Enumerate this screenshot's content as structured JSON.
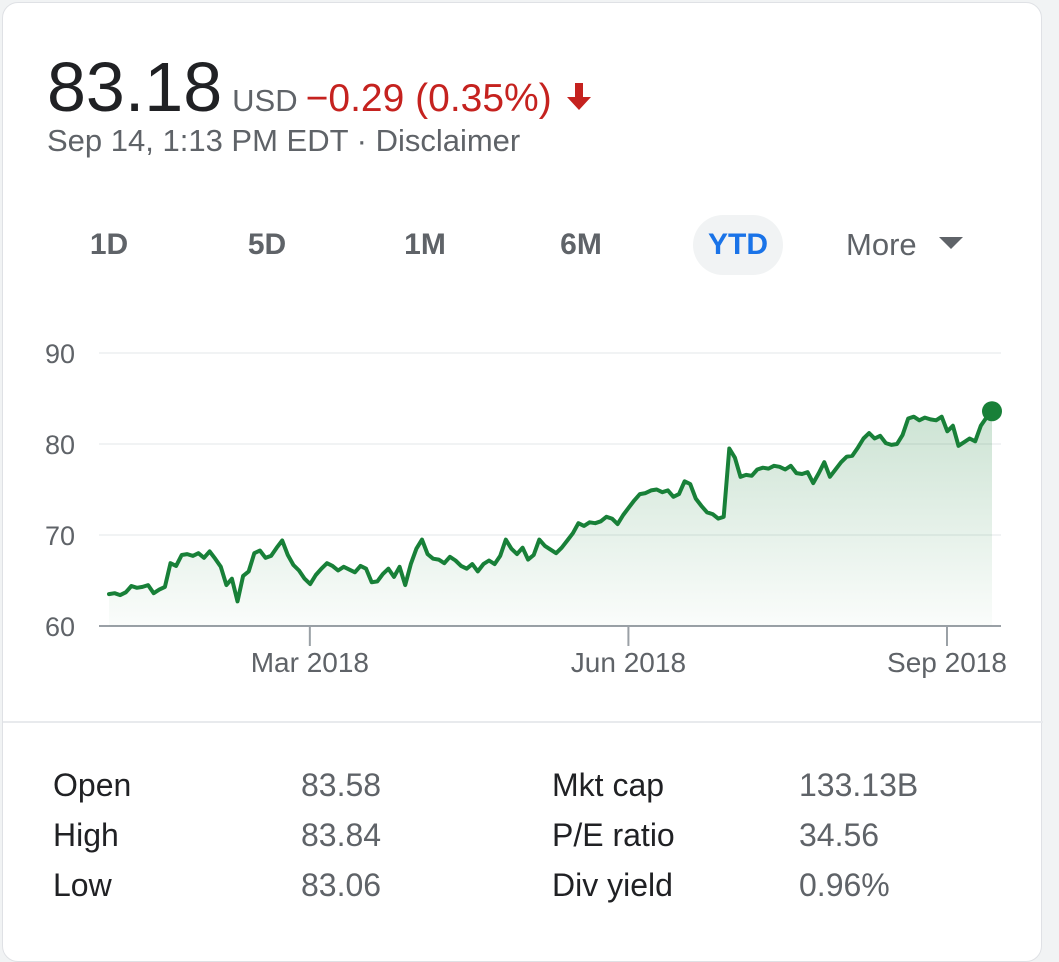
{
  "quote": {
    "price": "83.18",
    "currency": "USD",
    "change": "−0.29 (0.35%)",
    "timestamp": "Sep 14, 1:13 PM EDT",
    "separator": "·",
    "disclaimer": "Disclaimer",
    "change_color": "#c5221f",
    "direction_icon": "arrow-down-icon"
  },
  "ranges": {
    "items": [
      {
        "label": "1D",
        "active": false
      },
      {
        "label": "5D",
        "active": false
      },
      {
        "label": "1M",
        "active": false
      },
      {
        "label": "6M",
        "active": false
      },
      {
        "label": "YTD",
        "active": true
      }
    ],
    "more_label": "More",
    "active_color": "#1a73e8"
  },
  "chart_data": {
    "type": "area",
    "line_color": "#188038",
    "ylim": [
      60,
      90
    ],
    "yticks": [
      60,
      70,
      80,
      90
    ],
    "grid": true,
    "xtick_labels": [
      {
        "label": "Mar 2018",
        "x": "2018-03-01"
      },
      {
        "label": "Jun 2018",
        "x": "2018-06-01"
      },
      {
        "label": "Sep 2018",
        "x": "2018-09-01"
      }
    ],
    "x_start": "2018-01-02",
    "x_end": "2018-09-14",
    "series": [
      {
        "values": [
          63.5,
          63.6,
          63.4,
          63.7,
          64.4,
          64.2,
          64.3,
          64.5,
          63.6,
          64.0,
          64.3,
          66.9,
          66.6,
          67.8,
          67.9,
          67.7,
          68.0,
          67.5,
          68.2,
          67.4,
          66.5,
          64.5,
          65.2,
          62.7,
          65.5,
          66.0,
          68.0,
          68.3,
          67.5,
          67.7,
          68.6,
          69.4,
          67.8,
          66.7,
          66.1,
          65.2,
          64.6,
          65.6,
          66.3,
          66.9,
          66.6,
          66.1,
          66.5,
          66.2,
          65.9,
          66.6,
          66.3,
          64.8,
          64.9,
          65.7,
          66.3,
          65.4,
          66.5,
          64.5,
          66.8,
          68.5,
          69.5,
          67.9,
          67.4,
          67.3,
          66.9,
          67.6,
          67.2,
          66.6,
          66.3,
          66.8,
          66.0,
          66.8,
          67.2,
          66.8,
          67.7,
          69.5,
          68.5,
          67.9,
          68.6,
          67.3,
          67.8,
          69.5,
          68.8,
          68.4,
          68.0,
          68.6,
          69.4,
          70.2,
          71.3,
          71.0,
          71.4,
          71.3,
          71.5,
          72.0,
          71.8,
          71.2,
          72.2,
          73.0,
          73.8,
          74.5,
          74.6,
          74.9,
          75.0,
          74.7,
          74.9,
          74.2,
          74.5,
          75.9,
          75.6,
          74.0,
          73.2,
          72.5,
          72.3,
          71.8,
          72.0,
          79.5,
          78.5,
          76.4,
          76.6,
          76.5,
          77.2,
          77.4,
          77.3,
          77.6,
          77.5,
          77.2,
          77.6,
          76.8,
          76.7,
          76.9,
          75.7,
          76.8,
          78.0,
          76.4,
          77.2,
          78.0,
          78.6,
          78.7,
          79.6,
          80.6,
          81.2,
          80.6,
          80.9,
          80.1,
          79.9,
          80.0,
          81.0,
          82.8,
          83.0,
          82.6,
          82.9,
          82.7,
          82.6,
          83.0,
          81.4,
          82.0,
          79.8,
          80.2,
          80.6,
          80.3,
          82.0,
          82.9,
          83.6
        ]
      }
    ]
  },
  "stats": {
    "open_label": "Open",
    "open_value": "83.58",
    "high_label": "High",
    "high_value": "83.84",
    "low_label": "Low",
    "low_value": "83.06",
    "mktcap_label": "Mkt cap",
    "mktcap_value": "133.13B",
    "pe_label": "P/E ratio",
    "pe_value": "34.56",
    "div_label": "Div yield",
    "div_value": "0.96%"
  }
}
